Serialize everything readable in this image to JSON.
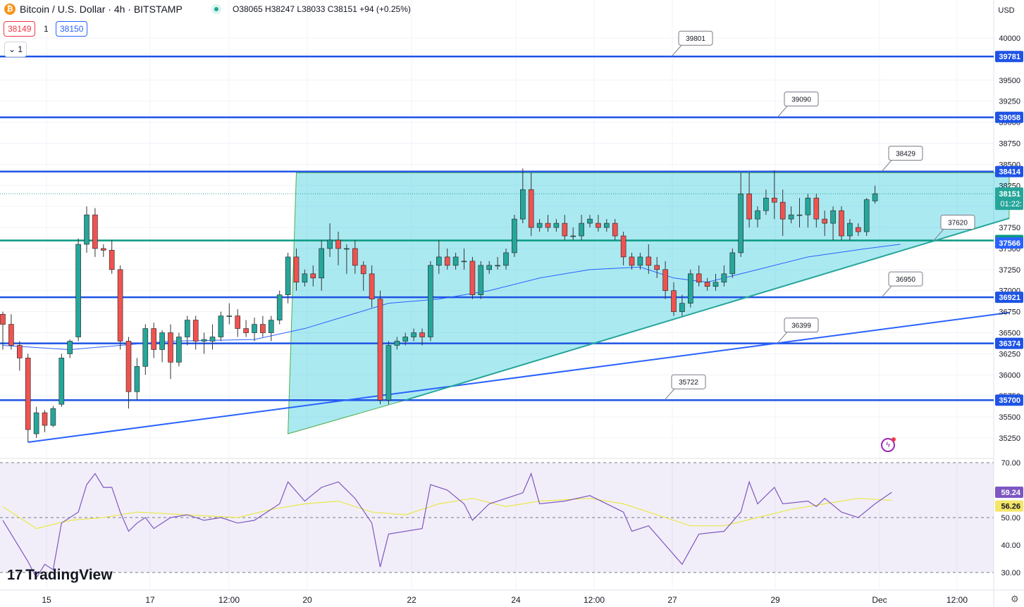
{
  "header": {
    "coin_icon": "bitcoin-icon",
    "symbol_title": "Bitcoin / U.S. Dollar · 4h · BITSTAMP",
    "ohlc": "O38065 H38247 L38033 C38151 +94 (+0.25%)",
    "sell_price": "38149",
    "quantity": "1",
    "buy_price": "38150",
    "indicators_toggle": "1"
  },
  "axis": {
    "currency": "USD",
    "price_ticks": [
      "40000",
      "39750",
      "39500",
      "39250",
      "39000",
      "38750",
      "38500",
      "38250",
      "38000",
      "37750",
      "37500",
      "37250",
      "37000",
      "36750",
      "36500",
      "36250",
      "36000",
      "35750",
      "35500",
      "35250"
    ],
    "rsi_ticks": [
      "70.00",
      "60.00",
      "50.00",
      "40.00",
      "30.00"
    ],
    "time_labels": [
      "15",
      "17",
      "12:00",
      "20",
      "22",
      "24",
      "12:00",
      "27",
      "29",
      "Dec",
      "12:00"
    ]
  },
  "tags": {
    "last_price": "38151",
    "countdown": "01:22:",
    "rsi_value": "59.24",
    "rsi_ma_value": "56.26"
  },
  "colors": {
    "up": "#26a69a",
    "down": "#ef5350",
    "level_line": "#1e53e5",
    "support_line": "#089981",
    "triangle_fill": "#00bcd4",
    "ma": "#2962ff",
    "rsi": "#7e57c2",
    "rsi_ma": "#e8e84a"
  },
  "footer": {
    "brand": "TradingView"
  },
  "chart_data": [
    {
      "type": "candlestick",
      "title": "Bitcoin / U.S. Dollar · 4h · BITSTAMP",
      "ylim": [
        35200,
        40200
      ],
      "x_labels": [
        "15",
        "17",
        "12:00",
        "20",
        "22",
        "24",
        "12:00",
        "27",
        "29",
        "Dec",
        "12:00"
      ],
      "candles": [
        [
          36720,
          36600,
          36750,
          36300
        ],
        [
          36600,
          36350,
          36720,
          36300
        ],
        [
          36350,
          36200,
          36400,
          36050
        ],
        [
          36200,
          35350,
          36250,
          35200
        ],
        [
          35300,
          35550,
          35620,
          35250
        ],
        [
          35550,
          35400,
          35580,
          35320
        ],
        [
          35400,
          35600,
          35630,
          35380
        ],
        [
          35650,
          36200,
          36250,
          35620
        ],
        [
          36250,
          36400,
          36420,
          36200
        ],
        [
          36450,
          37550,
          37620,
          36400
        ],
        [
          37550,
          37900,
          38000,
          37450
        ],
        [
          37900,
          37500,
          37980,
          37400
        ],
        [
          37500,
          37480,
          37550,
          37400
        ],
        [
          37480,
          37250,
          37600,
          37200
        ],
        [
          37250,
          36400,
          37300,
          36300
        ],
        [
          36400,
          35800,
          36450,
          35600
        ],
        [
          35800,
          36100,
          36200,
          35700
        ],
        [
          36100,
          36550,
          36600,
          36000
        ],
        [
          36550,
          36300,
          36620,
          36200
        ],
        [
          36300,
          36500,
          36530,
          36150
        ],
        [
          36500,
          36150,
          36600,
          35950
        ],
        [
          36150,
          36450,
          36500,
          36100
        ],
        [
          36450,
          36650,
          36700,
          36350
        ],
        [
          36650,
          36400,
          36700,
          36300
        ],
        [
          36400,
          36420,
          36500,
          36250
        ],
        [
          36400,
          36450,
          36600,
          36300
        ],
        [
          36450,
          36700,
          36750,
          36400
        ],
        [
          36700,
          36700,
          36850,
          36600
        ],
        [
          36700,
          36550,
          36780,
          36450
        ],
        [
          36550,
          36500,
          36650,
          36450
        ],
        [
          36500,
          36600,
          36680,
          36400
        ],
        [
          36600,
          36500,
          36700,
          36450
        ],
        [
          36500,
          36650,
          36700,
          36400
        ],
        [
          36650,
          36950,
          37000,
          36600
        ],
        [
          36950,
          37400,
          37450,
          36850
        ],
        [
          37400,
          37100,
          37500,
          37000
        ],
        [
          37100,
          37200,
          37250,
          37050
        ],
        [
          37200,
          37150,
          37300,
          37050
        ],
        [
          37150,
          37500,
          37600,
          37000
        ],
        [
          37500,
          37600,
          37800,
          37400
        ],
        [
          37600,
          37500,
          37700,
          37300
        ],
        [
          37500,
          37500,
          37550,
          37200
        ],
        [
          37500,
          37300,
          37600,
          37200
        ],
        [
          37300,
          37200,
          37350,
          37000
        ],
        [
          37200,
          36900,
          37300,
          36800
        ],
        [
          36900,
          35700,
          37000,
          35650
        ],
        [
          35700,
          36350,
          36400,
          35650
        ],
        [
          36350,
          36400,
          36450,
          36300
        ],
        [
          36400,
          36450,
          36500,
          36350
        ],
        [
          36450,
          36500,
          36550,
          36400
        ],
        [
          36500,
          36450,
          36550,
          36350
        ],
        [
          36450,
          37300,
          37350,
          36400
        ],
        [
          37300,
          37400,
          37600,
          37200
        ],
        [
          37400,
          37300,
          37500,
          37250
        ],
        [
          37300,
          37400,
          37450,
          37250
        ],
        [
          37350,
          37350,
          37500,
          37250
        ],
        [
          37350,
          36950,
          37400,
          36900
        ],
        [
          36950,
          37300,
          37350,
          36900
        ],
        [
          37250,
          37300,
          37350,
          37200
        ],
        [
          37300,
          37300,
          37400,
          37250
        ],
        [
          37300,
          37450,
          37500,
          37250
        ],
        [
          37450,
          37850,
          37900,
          37400
        ],
        [
          37850,
          38200,
          38450,
          37800
        ],
        [
          38200,
          37750,
          38400,
          37650
        ],
        [
          37750,
          37800,
          37850,
          37700
        ],
        [
          37800,
          37750,
          37900,
          37700
        ],
        [
          37750,
          37800,
          37850,
          37700
        ],
        [
          37800,
          37650,
          37900,
          37600
        ],
        [
          37650,
          37650,
          37750,
          37600
        ],
        [
          37650,
          37800,
          37900,
          37600
        ],
        [
          37800,
          37850,
          37900,
          37750
        ],
        [
          37800,
          37750,
          37900,
          37700
        ],
        [
          37750,
          37800,
          37850,
          37700
        ],
        [
          37800,
          37650,
          37850,
          37600
        ],
        [
          37650,
          37400,
          37700,
          37300
        ],
        [
          37400,
          37300,
          37450,
          37250
        ],
        [
          37300,
          37400,
          37450,
          37250
        ],
        [
          37400,
          37300,
          37550,
          37200
        ],
        [
          37300,
          37250,
          37400,
          37150
        ],
        [
          37250,
          37000,
          37350,
          36900
        ],
        [
          37000,
          36750,
          37100,
          36700
        ],
        [
          36750,
          36850,
          36950,
          36700
        ],
        [
          36850,
          37200,
          37250,
          36800
        ],
        [
          37200,
          37100,
          37300,
          37050
        ],
        [
          37100,
          37050,
          37150,
          37000
        ],
        [
          37050,
          37100,
          37200,
          37000
        ],
        [
          37100,
          37200,
          37300,
          37050
        ],
        [
          37200,
          37450,
          37500,
          37150
        ],
        [
          37450,
          38150,
          38400,
          37400
        ],
        [
          38150,
          37850,
          38400,
          37750
        ],
        [
          37850,
          37950,
          38000,
          37750
        ],
        [
          37950,
          38100,
          38200,
          37900
        ],
        [
          38100,
          38050,
          38430,
          37850
        ],
        [
          38050,
          37850,
          38200,
          37650
        ],
        [
          37850,
          37900,
          38000,
          37800
        ],
        [
          37900,
          37900,
          38100,
          37750
        ],
        [
          37900,
          38100,
          38150,
          37750
        ],
        [
          38100,
          37850,
          38150,
          37750
        ],
        [
          37850,
          37800,
          37950,
          37650
        ],
        [
          37800,
          37950,
          38000,
          37600
        ],
        [
          37950,
          37650,
          38000,
          37600
        ],
        [
          37650,
          37800,
          37850,
          37600
        ],
        [
          37750,
          37700,
          37800,
          37650
        ],
        [
          37700,
          38080,
          38100,
          37650
        ],
        [
          38065,
          38151,
          38247,
          38033
        ]
      ],
      "moving_average": [
        [
          0,
          36350
        ],
        [
          8,
          36300
        ],
        [
          14,
          36350
        ],
        [
          20,
          36400
        ],
        [
          30,
          36420
        ],
        [
          36,
          36550
        ],
        [
          46,
          36850
        ],
        [
          52,
          36900
        ],
        [
          58,
          37000
        ],
        [
          64,
          37150
        ],
        [
          70,
          37250
        ],
        [
          76,
          37280
        ],
        [
          80,
          37150
        ],
        [
          84,
          37100
        ],
        [
          90,
          37250
        ],
        [
          96,
          37400
        ],
        [
          103,
          37500
        ],
        [
          107,
          37550
        ]
      ],
      "rsi": [
        [
          0,
          49
        ],
        [
          3,
          34
        ],
        [
          4,
          28
        ],
        [
          5,
          33
        ],
        [
          6,
          31
        ],
        [
          7,
          48
        ],
        [
          9,
          52
        ],
        [
          10,
          62
        ],
        [
          11,
          66
        ],
        [
          12,
          61
        ],
        [
          13,
          61
        ],
        [
          14,
          52
        ],
        [
          15,
          45
        ],
        [
          16,
          48
        ],
        [
          17,
          50
        ],
        [
          18,
          46
        ],
        [
          20,
          50
        ],
        [
          22,
          51
        ],
        [
          24,
          49
        ],
        [
          26,
          50
        ],
        [
          28,
          48
        ],
        [
          30,
          49
        ],
        [
          33,
          55
        ],
        [
          34,
          63
        ],
        [
          36,
          56
        ],
        [
          38,
          61
        ],
        [
          40,
          63
        ],
        [
          42,
          57
        ],
        [
          44,
          48
        ],
        [
          45,
          32
        ],
        [
          46,
          44
        ],
        [
          50,
          46
        ],
        [
          51,
          62
        ],
        [
          53,
          60
        ],
        [
          55,
          55
        ],
        [
          56,
          49
        ],
        [
          58,
          55
        ],
        [
          62,
          59
        ],
        [
          63,
          66
        ],
        [
          64,
          55
        ],
        [
          67,
          56
        ],
        [
          70,
          58
        ],
        [
          74,
          52
        ],
        [
          75,
          45
        ],
        [
          77,
          47
        ],
        [
          79,
          40
        ],
        [
          81,
          33
        ],
        [
          83,
          44
        ],
        [
          86,
          45
        ],
        [
          88,
          52
        ],
        [
          89,
          63
        ],
        [
          90,
          55
        ],
        [
          92,
          61
        ],
        [
          93,
          55
        ],
        [
          96,
          56
        ],
        [
          97,
          54
        ],
        [
          98,
          57
        ],
        [
          100,
          52
        ],
        [
          102,
          50
        ],
        [
          104,
          55
        ],
        [
          106,
          59.24
        ]
      ],
      "rsi_ma": [
        [
          0,
          54
        ],
        [
          4,
          46
        ],
        [
          8,
          49
        ],
        [
          12,
          50
        ],
        [
          16,
          52
        ],
        [
          22,
          51
        ],
        [
          28,
          50
        ],
        [
          32,
          53
        ],
        [
          36,
          55
        ],
        [
          40,
          56
        ],
        [
          44,
          52
        ],
        [
          48,
          51
        ],
        [
          52,
          55
        ],
        [
          56,
          57
        ],
        [
          60,
          54
        ],
        [
          64,
          56
        ],
        [
          70,
          57
        ],
        [
          74,
          55
        ],
        [
          78,
          51
        ],
        [
          82,
          47
        ],
        [
          86,
          47
        ],
        [
          90,
          50
        ],
        [
          94,
          53
        ],
        [
          98,
          55
        ],
        [
          102,
          57
        ],
        [
          106,
          56.26
        ]
      ],
      "horizontal_levels": [
        {
          "price": 39781,
          "note": "39801"
        },
        {
          "price": 39058,
          "note": "39090"
        },
        {
          "price": 38414,
          "note": "38429"
        },
        {
          "price": 36921,
          "note": "36950"
        },
        {
          "price": 36374,
          "note": "36399"
        },
        {
          "price": 35700,
          "note": "35722"
        }
      ],
      "support_level": {
        "price": 37596,
        "note": "37620"
      },
      "ma_tag": "37566",
      "trendlines": [
        {
          "from": [
            3,
            35200
          ],
          "to": [
            120,
            36740
          ]
        },
        {
          "from": [
            48,
            35700
          ],
          "to": [
            120,
            37860
          ]
        }
      ],
      "triangle": [
        [
          34,
          35300
        ],
        [
          35,
          38400
        ],
        [
          120,
          38400
        ],
        [
          120,
          37860
        ],
        [
          48,
          35700
        ]
      ],
      "rsi_levels": [
        70,
        50,
        30
      ]
    }
  ]
}
